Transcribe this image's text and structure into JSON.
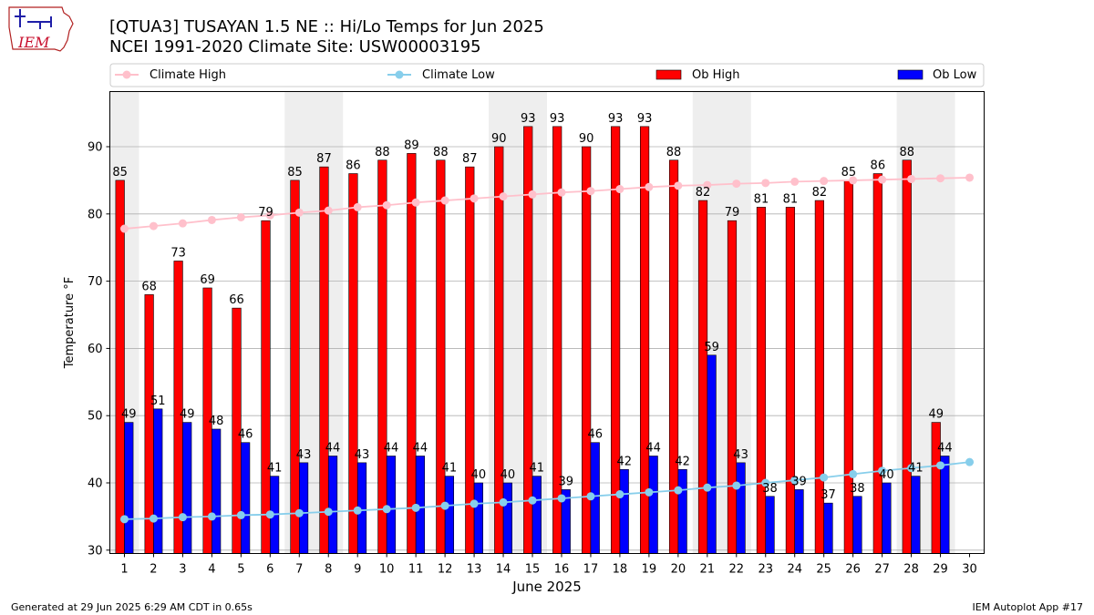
{
  "logo": {
    "text": "IEM"
  },
  "footer": {
    "generated": "Generated at 29 Jun 2025 6:29 AM CDT in 0.65s",
    "app": "IEM Autoplot App #17"
  },
  "chart_data": {
    "type": "bar",
    "title": "[QTUA3] TUSAYAN 1.5 NE :: Hi/Lo Temps for Jun 2025",
    "subtitle": "NCEI 1991-2020 Climate Site: USW00003195",
    "xlabel": "June 2025",
    "ylabel": "Temperature °F",
    "xlim": [
      0.5,
      30.5
    ],
    "ylim": [
      29.5,
      98.2
    ],
    "yticks": [
      30,
      40,
      50,
      60,
      70,
      80,
      90
    ],
    "grid": "horizontal",
    "legend_placement": "top",
    "weekend_shading": [
      [
        1,
        1
      ],
      [
        7,
        8
      ],
      [
        14,
        15
      ],
      [
        21,
        22
      ],
      [
        28,
        29
      ]
    ],
    "x": [
      1,
      2,
      3,
      4,
      5,
      6,
      7,
      8,
      9,
      10,
      11,
      12,
      13,
      14,
      15,
      16,
      17,
      18,
      19,
      20,
      21,
      22,
      23,
      24,
      25,
      26,
      27,
      28,
      29,
      30
    ],
    "series": [
      {
        "name": "Climate High",
        "kind": "line",
        "color": "#ffc0cb",
        "values": [
          77.8,
          78.2,
          78.6,
          79.1,
          79.5,
          79.8,
          80.2,
          80.5,
          81.0,
          81.3,
          81.7,
          82.0,
          82.3,
          82.6,
          82.9,
          83.2,
          83.4,
          83.7,
          84.0,
          84.2,
          84.3,
          84.5,
          84.6,
          84.8,
          84.9,
          85.0,
          85.1,
          85.2,
          85.3,
          85.4
        ]
      },
      {
        "name": "Climate Low",
        "kind": "line",
        "color": "#87ceeb",
        "values": [
          34.6,
          34.7,
          34.9,
          35.0,
          35.2,
          35.3,
          35.5,
          35.7,
          35.9,
          36.1,
          36.3,
          36.6,
          36.9,
          37.1,
          37.4,
          37.7,
          38.0,
          38.3,
          38.6,
          38.9,
          39.3,
          39.6,
          40.0,
          40.4,
          40.8,
          41.3,
          41.8,
          42.2,
          42.6,
          43.1
        ]
      },
      {
        "name": "Ob High",
        "kind": "bar",
        "color": "#ff0000",
        "values": [
          85,
          68,
          73,
          69,
          66,
          79,
          85,
          87,
          86,
          88,
          89,
          88,
          87,
          90,
          93,
          93,
          90,
          93,
          93,
          88,
          82,
          79,
          81,
          81,
          82,
          85,
          86,
          88,
          49,
          null
        ]
      },
      {
        "name": "Ob Low",
        "kind": "bar",
        "color": "#0000ff",
        "values": [
          49,
          51,
          49,
          48,
          46,
          41,
          43,
          44,
          43,
          44,
          44,
          41,
          40,
          40,
          41,
          39,
          46,
          42,
          44,
          42,
          59,
          43,
          38,
          39,
          37,
          38,
          40,
          41,
          44,
          null
        ]
      }
    ]
  }
}
